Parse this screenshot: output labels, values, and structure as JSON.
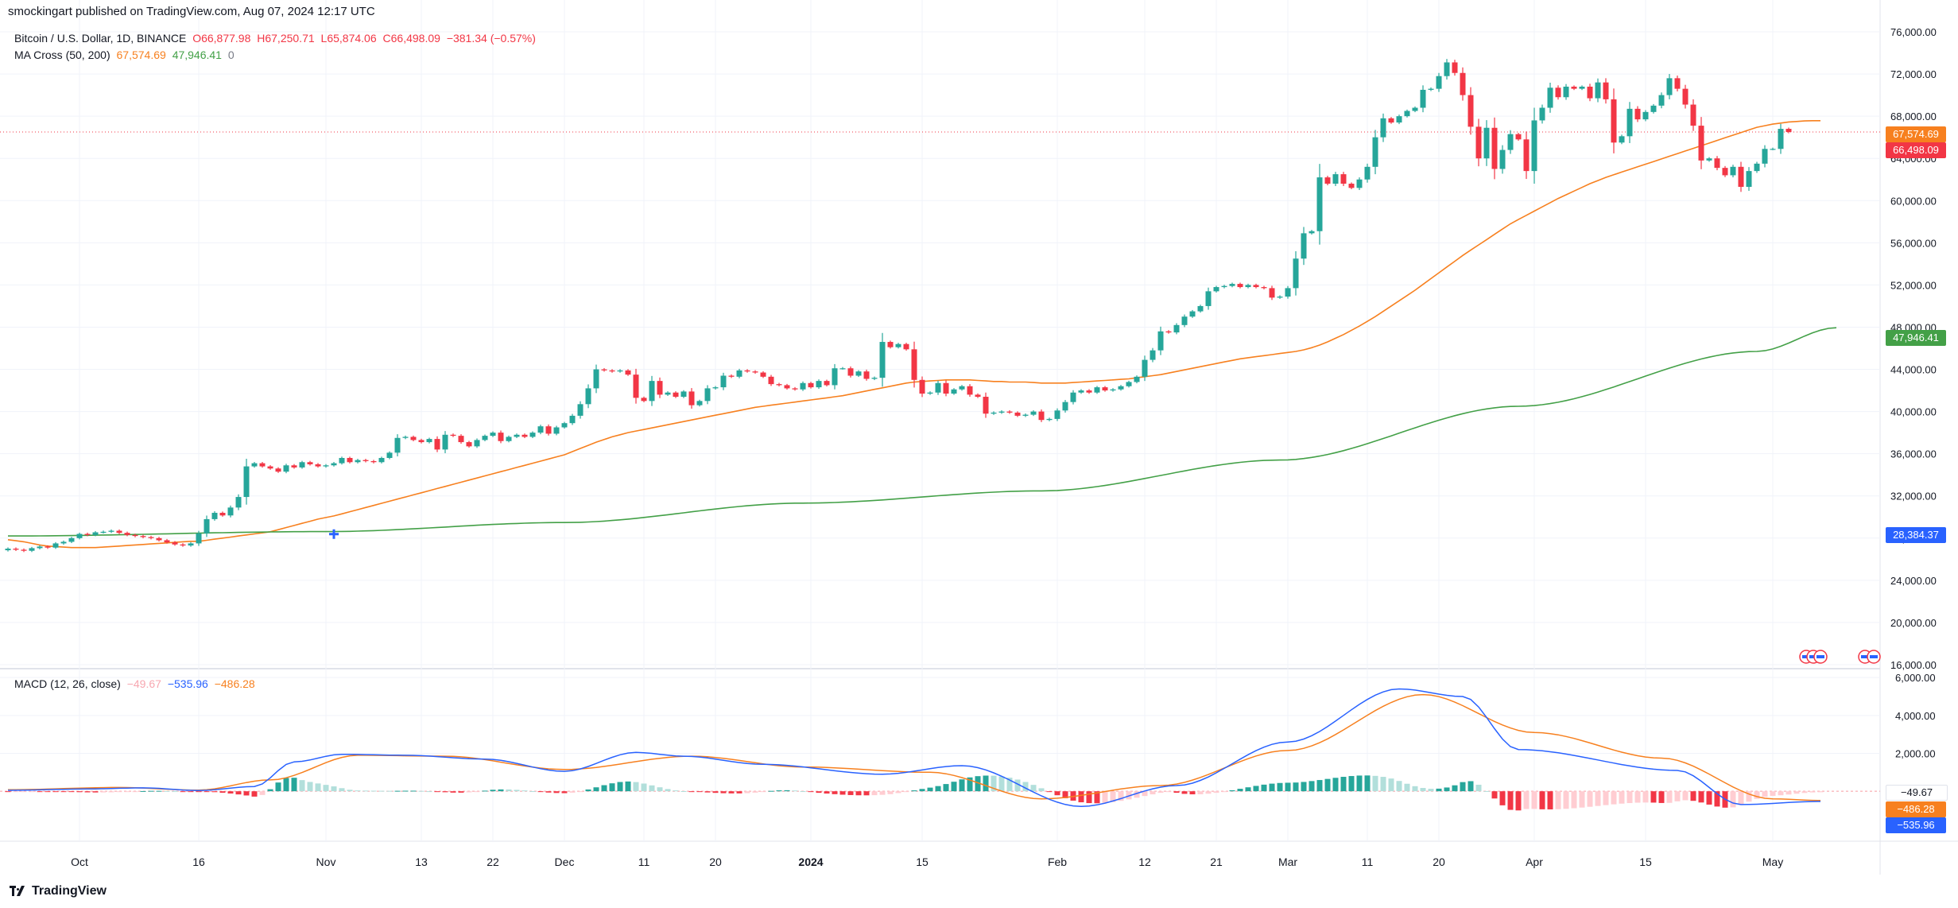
{
  "header": {
    "published": "smockingart published on TradingView.com, Aug 07, 2024 12:17 UTC",
    "symbol": "Bitcoin / U.S. Dollar, 1D, BINANCE",
    "open": "O66,877.98",
    "high": "H67,250.71",
    "low": "L65,874.06",
    "close": "C66,498.09",
    "change": "−381.34 (−0.57%)",
    "ma_label": "MA Cross (50, 200)",
    "ma50_value": "67,574.69",
    "ma200_value": "47,946.41",
    "ma_extra": "0",
    "macd_label": "MACD (12, 26, close)",
    "macd_hist_value": "−49.67",
    "macd_line_value": "−535.96",
    "macd_signal_value": "−486.28"
  },
  "price_labels": {
    "ma50": "67,574.69",
    "last": "66,498.09",
    "ma200": "47,946.41",
    "cross": "28,384.37",
    "macd_hist": "−49.67",
    "macd_signal": "−486.28",
    "macd_line": "−535.96"
  },
  "footer": {
    "brand": "TradingView"
  },
  "colors": {
    "up": "#26a69a",
    "down": "#f23645",
    "ma50": "#f7801f",
    "ma200": "#43a047",
    "macd_line": "#2962ff",
    "macd_signal": "#f7801f",
    "hist_up_strong": "#26a69a",
    "hist_up_weak": "#b2dfdb",
    "hist_down_strong": "#f23645",
    "hist_down_weak": "#ffcdd2"
  },
  "chart_data": [
    {
      "type": "candlestick",
      "title": "Bitcoin / U.S. Dollar, 1D, BINANCE",
      "y_ticks": [
        "16,000.00",
        "20,000.00",
        "24,000.00",
        "28,000.00",
        "32,000.00",
        "36,000.00",
        "40,000.00",
        "44,000.00",
        "48,000.00",
        "52,000.00",
        "56,000.00",
        "60,000.00",
        "64,000.00",
        "68,000.00",
        "72,000.00",
        "76,000.00"
      ],
      "y_tick_values": [
        16000,
        20000,
        24000,
        28000,
        32000,
        36000,
        40000,
        44000,
        48000,
        52000,
        56000,
        60000,
        64000,
        68000,
        72000,
        76000
      ],
      "ylim": [
        16000,
        76000
      ],
      "x_ticks": [
        {
          "day": 9,
          "label": "Oct"
        },
        {
          "day": 24,
          "label": "16"
        },
        {
          "day": 40,
          "label": "Nov"
        },
        {
          "day": 52,
          "label": "13"
        },
        {
          "day": 61,
          "label": "22"
        },
        {
          "day": 70,
          "label": "Dec"
        },
        {
          "day": 80,
          "label": "11"
        },
        {
          "day": 89,
          "label": "20"
        },
        {
          "day": 101,
          "label": "2024"
        },
        {
          "day": 115,
          "label": "15"
        },
        {
          "day": 132,
          "label": "Feb"
        },
        {
          "day": 143,
          "label": "12"
        },
        {
          "day": 152,
          "label": "21"
        },
        {
          "day": 161,
          "label": "Mar"
        },
        {
          "day": 171,
          "label": "11"
        },
        {
          "day": 180,
          "label": "20"
        },
        {
          "day": 192,
          "label": "Apr"
        },
        {
          "day": 206,
          "label": "15"
        },
        {
          "day": 222,
          "label": "May"
        }
      ],
      "closes": [
        27000,
        26900,
        26800,
        27050,
        27200,
        27100,
        27500,
        27650,
        28000,
        28400,
        28300,
        28550,
        28600,
        28700,
        28500,
        28300,
        28200,
        28100,
        28000,
        27800,
        27600,
        27400,
        27300,
        27500,
        28450,
        29800,
        30400,
        30150,
        30900,
        31900,
        34800,
        35100,
        34800,
        34600,
        34300,
        34900,
        34700,
        35200,
        35000,
        34800,
        34900,
        35100,
        35600,
        35200,
        35400,
        35300,
        35200,
        35600,
        36100,
        37500,
        37600,
        37300,
        37100,
        37400,
        36400,
        37800,
        37700,
        37100,
        36700,
        37300,
        37700,
        38000,
        37200,
        37600,
        37800,
        37600,
        38000,
        38600,
        37900,
        38500,
        38900,
        39600,
        40700,
        42200,
        44000,
        43900,
        43800,
        43900,
        43500,
        41300,
        41000,
        42900,
        41600,
        41800,
        41400,
        41900,
        40600,
        41000,
        42200,
        42300,
        43400,
        43300,
        43900,
        43800,
        43700,
        43300,
        42600,
        42500,
        42200,
        42100,
        42700,
        42300,
        42900,
        42500,
        44100,
        44100,
        43400,
        43800,
        43100,
        43200,
        46600,
        46100,
        46400,
        45900,
        43000,
        41700,
        41800,
        42700,
        41700,
        42100,
        42400,
        41600,
        41400,
        39800,
        39900,
        40000,
        39900,
        39600,
        39700,
        40000,
        39200,
        39300,
        40100,
        40900,
        41800,
        42000,
        41800,
        42300,
        42000,
        42100,
        42400,
        42800,
        43300,
        44900,
        45800,
        47600,
        47500,
        48200,
        49000,
        49500,
        50000,
        51400,
        51800,
        51900,
        52100,
        51800,
        52000,
        51800,
        51700,
        50800,
        50900,
        51700,
        54500,
        56900,
        57100,
        62200,
        61600,
        62500,
        61600,
        61200,
        62000,
        63200,
        66000,
        67800,
        67400,
        68000,
        68500,
        68800,
        70500,
        70600,
        71800,
        73100,
        72100,
        70000,
        67000,
        64000,
        66900,
        63000,
        64800,
        66300,
        65800,
        62800,
        67600,
        68800,
        70700,
        69800,
        70800,
        70600,
        70800,
        69700,
        71200,
        69600,
        65500,
        66100,
        68700,
        67700,
        68400,
        69000,
        70000,
        71600,
        70600,
        69100,
        67100,
        63800,
        64000,
        63100,
        62400,
        63200,
        61300,
        62800,
        63500,
        64900,
        64900,
        66800,
        66500
      ],
      "ma50_series": {
        "name": "MA 50",
        "start_day": 0,
        "values": [
          27850,
          27750,
          27650,
          27500,
          27350,
          27250,
          27200,
          27150,
          27100,
          27100,
          27100,
          27100,
          27150,
          27200,
          27250,
          27300,
          27350,
          27400,
          27450,
          27500,
          27550,
          27600,
          27650,
          27700,
          27700,
          27800,
          27900,
          28000,
          28100,
          28200,
          28300,
          28400,
          28500,
          28600,
          28800,
          29000,
          29200,
          29400,
          29600,
          29800,
          29950,
          30100,
          30300,
          30500,
          30700,
          30900,
          31100,
          31300,
          31500,
          31700,
          31900,
          32100,
          32300,
          32500,
          32700,
          32900,
          33100,
          33300,
          33500,
          33700,
          33900,
          34100,
          34300,
          34500,
          34700,
          34900,
          35100,
          35300,
          35500,
          35700,
          35900,
          36200,
          36500,
          36800,
          37100,
          37350,
          37600,
          37800,
          38000,
          38150,
          38300,
          38450,
          38600,
          38750,
          38900,
          39050,
          39200,
          39350,
          39500,
          39650,
          39800,
          39950,
          40100,
          40250,
          40400,
          40500,
          40600,
          40700,
          40800,
          40900,
          41000,
          41100,
          41200,
          41300,
          41400,
          41500,
          41650,
          41800,
          41950,
          42100,
          42250,
          42400,
          42550,
          42700,
          42800,
          42850,
          42900,
          42950,
          43000,
          43000,
          43000,
          43000,
          42950,
          42900,
          42850,
          42850,
          42800,
          42800,
          42800,
          42750,
          42700,
          42700,
          42700,
          42700,
          42750,
          42800,
          42850,
          42900,
          42950,
          43000,
          43050,
          43100,
          43200,
          43300,
          43400,
          43500,
          43650,
          43800,
          43950,
          44100,
          44250,
          44400,
          44550,
          44700,
          44850,
          45000,
          45100,
          45200,
          45300,
          45400,
          45500,
          45600,
          45700,
          45850,
          46050,
          46300,
          46600,
          46950,
          47300,
          47700,
          48100,
          48550,
          49000,
          49500,
          50000,
          50500,
          51000,
          51500,
          52050,
          52600,
          53150,
          53700,
          54250,
          54800,
          55300,
          55800,
          56300,
          56800,
          57300,
          57800,
          58200,
          58600,
          59000,
          59400,
          59800,
          60200,
          60550,
          60900,
          61250,
          61600,
          61900,
          62200,
          62450,
          62700,
          62950,
          63200,
          63450,
          63700,
          63950,
          64200,
          64450,
          64700,
          64950,
          65200,
          65450,
          65700,
          65950,
          66200,
          66450,
          66700,
          66950,
          67100,
          67250,
          67350,
          67450,
          67500,
          67550,
          67570,
          67575
        ]
      },
      "ma200_series": {
        "name": "MA 200",
        "start_day": 0,
        "values_at_days": {
          "0": 28200,
          "40": 28620,
          "70": 29480,
          "100": 31320,
          "130": 32480,
          "160": 35400,
          "190": 40500,
          "220": 45700,
          "230": 47946
        }
      },
      "cross_marker": {
        "day": 41,
        "value": 28384.37
      }
    },
    {
      "type": "bar",
      "title": "MACD (12, 26, close)",
      "y_ticks": [
        "2,000.00",
        "4,000.00",
        "6,000.00"
      ],
      "y_tick_values": [
        2000,
        4000,
        6000
      ],
      "ylim": [
        -2300,
        6300
      ],
      "macd_line_anchors": {
        "0": 50,
        "10": 120,
        "17": 180,
        "24": 40,
        "31": 250,
        "36": 1550,
        "42": 1950,
        "50": 1900,
        "60": 1700,
        "70": 1050,
        "79": 2050,
        "85": 1850,
        "95": 1420,
        "110": 900,
        "120": 1350,
        "135": -800,
        "147": 300,
        "161": 2600,
        "175": 5400,
        "183": 5000,
        "190": 2200,
        "210": 1100,
        "218": -700,
        "228": -536
      },
      "signal_anchors": {
        "0": 80,
        "14": 200,
        "24": 60,
        "33": 600,
        "44": 1900,
        "55": 1850,
        "70": 1150,
        "86": 1850,
        "100": 1280,
        "116": 1000,
        "130": -400,
        "145": 300,
        "161": 2150,
        "178": 5100,
        "192": 3100,
        "208": 1750,
        "222": -400,
        "228": -486
      }
    }
  ]
}
